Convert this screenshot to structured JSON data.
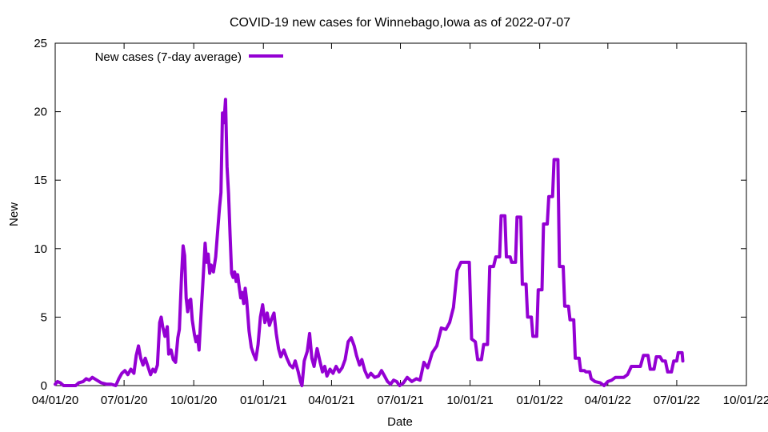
{
  "chart_data": {
    "type": "line",
    "title": "COVID-19 new cases for Winnebago,Iowa as of 2022-07-07",
    "xlabel": "Date",
    "ylabel": "New",
    "xlim": [
      "2020-04-01",
      "2022-10-01"
    ],
    "ylim": [
      0,
      25
    ],
    "grid": false,
    "legend_position": "top-left",
    "x_ticks": [
      "04/01/20",
      "07/01/20",
      "10/01/20",
      "01/01/21",
      "04/01/21",
      "07/01/21",
      "10/01/21",
      "01/01/22",
      "04/01/22",
      "07/01/22",
      "10/01/22"
    ],
    "x_tick_dates": [
      "2020-04-01",
      "2020-07-01",
      "2020-10-01",
      "2021-01-01",
      "2021-04-01",
      "2021-07-01",
      "2021-10-01",
      "2022-01-01",
      "2022-04-01",
      "2022-07-01",
      "2022-10-01"
    ],
    "y_ticks": [
      0,
      5,
      10,
      15,
      20,
      25
    ],
    "series": [
      {
        "name": "New cases (7-day average)",
        "color": "#9400d3",
        "points": [
          [
            "2020-04-01",
            0.1
          ],
          [
            "2020-04-04",
            0.3
          ],
          [
            "2020-04-08",
            0.2
          ],
          [
            "2020-04-12",
            0.0
          ],
          [
            "2020-04-20",
            0.0
          ],
          [
            "2020-04-28",
            0.0
          ],
          [
            "2020-05-02",
            0.2
          ],
          [
            "2020-05-08",
            0.3
          ],
          [
            "2020-05-12",
            0.5
          ],
          [
            "2020-05-16",
            0.4
          ],
          [
            "2020-05-20",
            0.6
          ],
          [
            "2020-05-26",
            0.4
          ],
          [
            "2020-06-01",
            0.2
          ],
          [
            "2020-06-08",
            0.1
          ],
          [
            "2020-06-14",
            0.1
          ],
          [
            "2020-06-20",
            0.0
          ],
          [
            "2020-06-24",
            0.5
          ],
          [
            "2020-06-28",
            0.9
          ],
          [
            "2020-07-02",
            1.1
          ],
          [
            "2020-07-06",
            0.8
          ],
          [
            "2020-07-10",
            1.2
          ],
          [
            "2020-07-14",
            0.9
          ],
          [
            "2020-07-17",
            2.2
          ],
          [
            "2020-07-20",
            2.9
          ],
          [
            "2020-07-23",
            2.0
          ],
          [
            "2020-07-26",
            1.5
          ],
          [
            "2020-07-29",
            2.0
          ],
          [
            "2020-08-02",
            1.3
          ],
          [
            "2020-08-05",
            0.8
          ],
          [
            "2020-08-08",
            1.2
          ],
          [
            "2020-08-11",
            1.0
          ],
          [
            "2020-08-14",
            1.5
          ],
          [
            "2020-08-17",
            4.6
          ],
          [
            "2020-08-19",
            5.0
          ],
          [
            "2020-08-21",
            4.3
          ],
          [
            "2020-08-24",
            3.6
          ],
          [
            "2020-08-27",
            4.3
          ],
          [
            "2020-08-29",
            2.3
          ],
          [
            "2020-09-01",
            2.6
          ],
          [
            "2020-09-04",
            1.9
          ],
          [
            "2020-09-07",
            1.7
          ],
          [
            "2020-09-10",
            3.5
          ],
          [
            "2020-09-12",
            4.1
          ],
          [
            "2020-09-15",
            8.1
          ],
          [
            "2020-09-17",
            10.2
          ],
          [
            "2020-09-19",
            9.5
          ],
          [
            "2020-09-21",
            6.4
          ],
          [
            "2020-09-23",
            5.4
          ],
          [
            "2020-09-25",
            6.2
          ],
          [
            "2020-09-27",
            6.3
          ],
          [
            "2020-09-29",
            4.8
          ],
          [
            "2020-10-02",
            3.7
          ],
          [
            "2020-10-04",
            3.2
          ],
          [
            "2020-10-06",
            3.6
          ],
          [
            "2020-10-08",
            2.6
          ],
          [
            "2020-10-10",
            4.6
          ],
          [
            "2020-10-13",
            7.4
          ],
          [
            "2020-10-16",
            10.4
          ],
          [
            "2020-10-18",
            9.0
          ],
          [
            "2020-10-20",
            9.6
          ],
          [
            "2020-10-22",
            8.2
          ],
          [
            "2020-10-24",
            8.8
          ],
          [
            "2020-10-27",
            8.3
          ],
          [
            "2020-10-30",
            9.4
          ],
          [
            "2020-11-02",
            11.6
          ],
          [
            "2020-11-04",
            13.0
          ],
          [
            "2020-11-06",
            14.1
          ],
          [
            "2020-11-08",
            19.9
          ],
          [
            "2020-11-10",
            19.2
          ],
          [
            "2020-11-12",
            20.9
          ],
          [
            "2020-11-14",
            16.0
          ],
          [
            "2020-11-16",
            14.0
          ],
          [
            "2020-11-18",
            11.0
          ],
          [
            "2020-11-20",
            8.2
          ],
          [
            "2020-11-22",
            7.9
          ],
          [
            "2020-11-24",
            8.3
          ],
          [
            "2020-11-26",
            7.6
          ],
          [
            "2020-11-28",
            8.1
          ],
          [
            "2020-11-30",
            7.2
          ],
          [
            "2020-12-02",
            6.4
          ],
          [
            "2020-12-04",
            6.8
          ],
          [
            "2020-12-06",
            6.0
          ],
          [
            "2020-12-08",
            7.1
          ],
          [
            "2020-12-10",
            6.2
          ],
          [
            "2020-12-13",
            4.0
          ],
          [
            "2020-12-16",
            2.8
          ],
          [
            "2020-12-19",
            2.3
          ],
          [
            "2020-12-22",
            1.9
          ],
          [
            "2020-12-25",
            3.0
          ],
          [
            "2020-12-28",
            5.0
          ],
          [
            "2020-12-31",
            5.9
          ],
          [
            "2021-01-03",
            4.6
          ],
          [
            "2021-01-06",
            5.3
          ],
          [
            "2021-01-09",
            4.4
          ],
          [
            "2021-01-12",
            4.9
          ],
          [
            "2021-01-15",
            5.3
          ],
          [
            "2021-01-18",
            3.8
          ],
          [
            "2021-01-21",
            2.7
          ],
          [
            "2021-01-24",
            2.1
          ],
          [
            "2021-01-28",
            2.6
          ],
          [
            "2021-02-01",
            2.0
          ],
          [
            "2021-02-05",
            1.5
          ],
          [
            "2021-02-09",
            1.3
          ],
          [
            "2021-02-12",
            1.8
          ],
          [
            "2021-02-16",
            1.0
          ],
          [
            "2021-02-19",
            0.3
          ],
          [
            "2021-02-21",
            0.0
          ],
          [
            "2021-02-24",
            1.8
          ],
          [
            "2021-02-28",
            2.5
          ],
          [
            "2021-03-03",
            3.8
          ],
          [
            "2021-03-06",
            2.0
          ],
          [
            "2021-03-09",
            1.4
          ],
          [
            "2021-03-13",
            2.7
          ],
          [
            "2021-03-17",
            1.7
          ],
          [
            "2021-03-20",
            1.0
          ],
          [
            "2021-03-23",
            1.4
          ],
          [
            "2021-03-26",
            0.7
          ],
          [
            "2021-03-30",
            1.2
          ],
          [
            "2021-04-03",
            0.9
          ],
          [
            "2021-04-07",
            1.4
          ],
          [
            "2021-04-11",
            1.0
          ],
          [
            "2021-04-15",
            1.3
          ],
          [
            "2021-04-19",
            1.9
          ],
          [
            "2021-04-23",
            3.2
          ],
          [
            "2021-04-27",
            3.5
          ],
          [
            "2021-05-01",
            2.9
          ],
          [
            "2021-05-04",
            2.2
          ],
          [
            "2021-05-08",
            1.5
          ],
          [
            "2021-05-11",
            1.9
          ],
          [
            "2021-05-15",
            1.1
          ],
          [
            "2021-05-19",
            0.6
          ],
          [
            "2021-05-23",
            0.9
          ],
          [
            "2021-05-28",
            0.6
          ],
          [
            "2021-06-02",
            0.7
          ],
          [
            "2021-06-06",
            1.1
          ],
          [
            "2021-06-10",
            0.7
          ],
          [
            "2021-06-14",
            0.3
          ],
          [
            "2021-06-18",
            0.1
          ],
          [
            "2021-06-22",
            0.4
          ],
          [
            "2021-06-26",
            0.3
          ],
          [
            "2021-06-30",
            0.0
          ],
          [
            "2021-07-05",
            0.2
          ],
          [
            "2021-07-10",
            0.6
          ],
          [
            "2021-07-16",
            0.3
          ],
          [
            "2021-07-22",
            0.5
          ],
          [
            "2021-07-27",
            0.4
          ],
          [
            "2021-08-01",
            1.7
          ],
          [
            "2021-08-06",
            1.3
          ],
          [
            "2021-08-12",
            2.4
          ],
          [
            "2021-08-18",
            2.9
          ],
          [
            "2021-08-24",
            4.2
          ],
          [
            "2021-08-30",
            4.1
          ],
          [
            "2021-09-04",
            4.6
          ],
          [
            "2021-09-09",
            5.7
          ],
          [
            "2021-09-14",
            8.4
          ],
          [
            "2021-09-19",
            9.0
          ],
          [
            "2021-09-25",
            9.0
          ],
          [
            "2021-09-30",
            9.0
          ],
          [
            "2021-10-03",
            3.4
          ],
          [
            "2021-10-08",
            3.2
          ],
          [
            "2021-10-11",
            1.9
          ],
          [
            "2021-10-16",
            1.9
          ],
          [
            "2021-10-19",
            3.0
          ],
          [
            "2021-10-24",
            3.0
          ],
          [
            "2021-10-27",
            8.7
          ],
          [
            "2021-11-01",
            8.7
          ],
          [
            "2021-11-04",
            9.4
          ],
          [
            "2021-11-09",
            9.4
          ],
          [
            "2021-11-11",
            12.4
          ],
          [
            "2021-11-16",
            12.4
          ],
          [
            "2021-11-18",
            9.4
          ],
          [
            "2021-11-23",
            9.4
          ],
          [
            "2021-11-25",
            9.0
          ],
          [
            "2021-11-30",
            9.0
          ],
          [
            "2021-12-02",
            12.3
          ],
          [
            "2021-12-07",
            12.3
          ],
          [
            "2021-12-09",
            7.4
          ],
          [
            "2021-12-14",
            7.4
          ],
          [
            "2021-12-16",
            5.0
          ],
          [
            "2021-12-21",
            5.0
          ],
          [
            "2021-12-23",
            3.6
          ],
          [
            "2021-12-28",
            3.6
          ],
          [
            "2021-12-30",
            7.0
          ],
          [
            "2022-01-04",
            7.0
          ],
          [
            "2022-01-06",
            11.8
          ],
          [
            "2022-01-11",
            11.8
          ],
          [
            "2022-01-13",
            13.8
          ],
          [
            "2022-01-18",
            13.8
          ],
          [
            "2022-01-20",
            16.5
          ],
          [
            "2022-01-25",
            16.5
          ],
          [
            "2022-01-27",
            8.7
          ],
          [
            "2022-02-01",
            8.7
          ],
          [
            "2022-02-03",
            5.8
          ],
          [
            "2022-02-08",
            5.8
          ],
          [
            "2022-02-10",
            4.8
          ],
          [
            "2022-02-15",
            4.8
          ],
          [
            "2022-02-17",
            2.0
          ],
          [
            "2022-02-22",
            2.0
          ],
          [
            "2022-02-24",
            1.1
          ],
          [
            "2022-03-01",
            1.1
          ],
          [
            "2022-03-03",
            1.0
          ],
          [
            "2022-03-08",
            1.0
          ],
          [
            "2022-03-10",
            0.5
          ],
          [
            "2022-03-15",
            0.3
          ],
          [
            "2022-03-22",
            0.2
          ],
          [
            "2022-03-27",
            0.0
          ],
          [
            "2022-04-01",
            0.3
          ],
          [
            "2022-04-06",
            0.4
          ],
          [
            "2022-04-11",
            0.6
          ],
          [
            "2022-04-16",
            0.6
          ],
          [
            "2022-04-22",
            0.6
          ],
          [
            "2022-04-27",
            0.8
          ],
          [
            "2022-05-02",
            1.4
          ],
          [
            "2022-05-08",
            1.4
          ],
          [
            "2022-05-14",
            1.4
          ],
          [
            "2022-05-18",
            2.2
          ],
          [
            "2022-05-24",
            2.2
          ],
          [
            "2022-05-27",
            1.2
          ],
          [
            "2022-06-01",
            1.2
          ],
          [
            "2022-06-04",
            2.1
          ],
          [
            "2022-06-09",
            2.1
          ],
          [
            "2022-06-12",
            1.8
          ],
          [
            "2022-06-16",
            1.8
          ],
          [
            "2022-06-19",
            1.0
          ],
          [
            "2022-06-24",
            1.0
          ],
          [
            "2022-06-27",
            1.8
          ],
          [
            "2022-07-01",
            1.8
          ],
          [
            "2022-07-03",
            2.4
          ],
          [
            "2022-07-08",
            2.4
          ],
          [
            "2022-07-09",
            1.8
          ]
        ]
      }
    ]
  }
}
